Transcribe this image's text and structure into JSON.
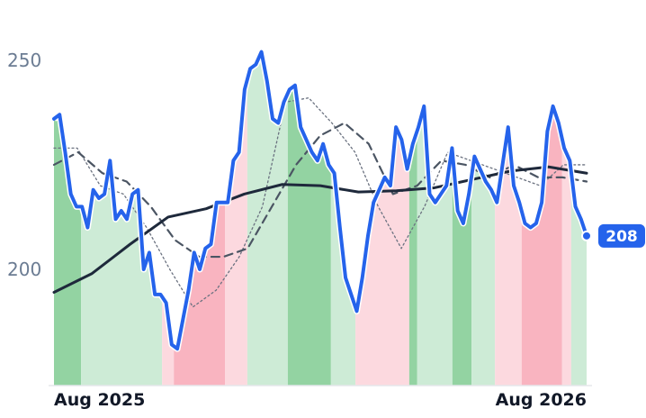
{
  "chart_data": {
    "type": "line",
    "xlim": [
      0,
      100
    ],
    "xticks": [
      {
        "value": 0,
        "label": "Aug 2025"
      },
      {
        "value": 100,
        "label": "Aug 2026"
      }
    ],
    "ylim": [
      172.2,
      264.2
    ],
    "yticks": [
      200,
      250
    ],
    "grid": false,
    "bands": [
      {
        "from": 0,
        "to": 5.1,
        "color": "#93d3a2"
      },
      {
        "from": 5.1,
        "to": 20.3,
        "color": "#cdebd6"
      },
      {
        "from": 20.3,
        "to": 22.5,
        "color": "#fcd9df"
      },
      {
        "from": 22.5,
        "to": 32.1,
        "color": "#f9b4c0"
      },
      {
        "from": 32.1,
        "to": 36.3,
        "color": "#fcd9df"
      },
      {
        "from": 36.3,
        "to": 43.9,
        "color": "#cdebd6"
      },
      {
        "from": 43.9,
        "to": 52,
        "color": "#93d3a2"
      },
      {
        "from": 52,
        "to": 56.6,
        "color": "#cdebd6"
      },
      {
        "from": 56.6,
        "to": 66.7,
        "color": "#fcd9df"
      },
      {
        "from": 66.7,
        "to": 68.2,
        "color": "#93d3a2"
      },
      {
        "from": 68.2,
        "to": 74.8,
        "color": "#cdebd6"
      },
      {
        "from": 74.8,
        "to": 78.4,
        "color": "#93d3a2"
      },
      {
        "from": 78.4,
        "to": 82.8,
        "color": "#cdebd6"
      },
      {
        "from": 82.8,
        "to": 87.8,
        "color": "#fcd9df"
      },
      {
        "from": 87.8,
        "to": 95.4,
        "color": "#f9b4c0"
      },
      {
        "from": 95.4,
        "to": 97.1,
        "color": "#fcd9df"
      },
      {
        "from": 97.1,
        "to": 100,
        "color": "#cdebd6"
      }
    ],
    "series": [
      {
        "color": "#2563eb",
        "width": 4,
        "dash": "none",
        "values": [
          236,
          237,
          228,
          218,
          215,
          215,
          210,
          219,
          217,
          218,
          226,
          212,
          214,
          212,
          218,
          219,
          200,
          204,
          194,
          194,
          192,
          182,
          181,
          188,
          195,
          204,
          200,
          205,
          206,
          216,
          216,
          216,
          226,
          228,
          243,
          248,
          249,
          252,
          245,
          236,
          235,
          240,
          243,
          244,
          234,
          231,
          228,
          226,
          230,
          225,
          223,
          210,
          198,
          194,
          190,
          198,
          208,
          216,
          219,
          222,
          220,
          234,
          231,
          224,
          230,
          234,
          239,
          218,
          216,
          218,
          220,
          229,
          214,
          211,
          218,
          227,
          224,
          221,
          219,
          216,
          225,
          234,
          220,
          216,
          211,
          210,
          211,
          216,
          233,
          239,
          235,
          229,
          226,
          215,
          212,
          208
        ]
      },
      {
        "color": "#1e293b",
        "width": 3,
        "dash": "none",
        "values": [
          194.5,
          199,
          206,
          212.5,
          214.5,
          218,
          220.3,
          220,
          218.5,
          218.8,
          219.5,
          221.5,
          223.5,
          224.5,
          223
        ]
      },
      {
        "color": "#4b5563",
        "width": 2.2,
        "dash": "9 6",
        "values": [
          225,
          228,
          223,
          221,
          215,
          207,
          203,
          203,
          205,
          215,
          225,
          232,
          235,
          230,
          218,
          220,
          226,
          225,
          222,
          225,
          222,
          222,
          221
        ]
      },
      {
        "color": "#6b7280",
        "width": 1.3,
        "dash": "2 3",
        "values": [
          229,
          229,
          220,
          218,
          210,
          200,
          191,
          195,
          203,
          215,
          240,
          241,
          235,
          228,
          215,
          205,
          215,
          228,
          226,
          224,
          222,
          220,
          225,
          225
        ]
      }
    ]
  }
}
